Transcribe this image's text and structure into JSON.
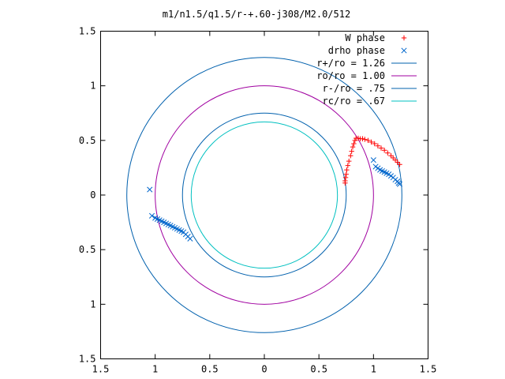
{
  "chart_data": {
    "type": "scatter",
    "title": "m1/n1.5/q1.5/r-+.60-j308/M2.0/512",
    "xlim": [
      -1.5,
      1.5
    ],
    "ylim": [
      -1.5,
      1.5
    ],
    "x_ticks": [
      -1.5,
      -1,
      -0.5,
      0,
      0.5,
      1,
      1.5
    ],
    "y_ticks": [
      -1.5,
      -1,
      -0.5,
      0,
      0.5,
      1,
      1.5
    ],
    "x_tick_labels": [
      "1.5",
      "1",
      "0.5",
      "0",
      "0.5",
      "1",
      "1.5"
    ],
    "y_tick_labels": [
      "1.5",
      "1",
      "0.5",
      "0",
      "0.5",
      "1",
      "1.5"
    ],
    "grid": false,
    "legend_position": "top-right",
    "series": [
      {
        "name": "W phase",
        "kind": "points",
        "marker": "+",
        "color": "#ff0000",
        "points": [
          [
            0.74,
            0.11
          ],
          [
            0.74,
            0.13
          ],
          [
            0.745,
            0.16
          ],
          [
            0.75,
            0.19
          ],
          [
            0.755,
            0.23
          ],
          [
            0.765,
            0.27
          ],
          [
            0.775,
            0.31
          ],
          [
            0.79,
            0.36
          ],
          [
            0.8,
            0.4
          ],
          [
            0.81,
            0.44
          ],
          [
            0.82,
            0.47
          ],
          [
            0.83,
            0.5
          ],
          [
            0.84,
            0.52
          ],
          [
            0.86,
            0.52
          ],
          [
            0.88,
            0.515
          ],
          [
            0.9,
            0.515
          ],
          [
            0.92,
            0.51
          ],
          [
            0.95,
            0.5
          ],
          [
            0.98,
            0.485
          ],
          [
            1.01,
            0.47
          ],
          [
            1.04,
            0.45
          ],
          [
            1.07,
            0.43
          ],
          [
            1.1,
            0.41
          ],
          [
            1.13,
            0.385
          ],
          [
            1.16,
            0.36
          ],
          [
            1.18,
            0.34
          ],
          [
            1.2,
            0.32
          ],
          [
            1.22,
            0.3
          ],
          [
            1.24,
            0.28
          ]
        ]
      },
      {
        "name": "drho phase",
        "kind": "points",
        "marker": "x",
        "color": "#0066cc",
        "points": [
          [
            1.0,
            0.32
          ],
          [
            1.02,
            0.26
          ],
          [
            1.04,
            0.245
          ],
          [
            1.06,
            0.23
          ],
          [
            1.08,
            0.22
          ],
          [
            1.1,
            0.21
          ],
          [
            1.12,
            0.2
          ],
          [
            1.14,
            0.19
          ],
          [
            1.16,
            0.175
          ],
          [
            1.18,
            0.16
          ],
          [
            1.2,
            0.14
          ],
          [
            1.22,
            0.125
          ],
          [
            1.23,
            0.11
          ],
          [
            1.24,
            0.1
          ],
          [
            -1.05,
            0.05
          ],
          [
            -1.03,
            -0.19
          ],
          [
            -1.0,
            -0.21
          ],
          [
            -0.98,
            -0.22
          ],
          [
            -0.96,
            -0.23
          ],
          [
            -0.94,
            -0.24
          ],
          [
            -0.92,
            -0.25
          ],
          [
            -0.9,
            -0.26
          ],
          [
            -0.88,
            -0.27
          ],
          [
            -0.86,
            -0.28
          ],
          [
            -0.84,
            -0.29
          ],
          [
            -0.82,
            -0.3
          ],
          [
            -0.8,
            -0.31
          ],
          [
            -0.78,
            -0.32
          ],
          [
            -0.76,
            -0.33
          ],
          [
            -0.74,
            -0.34
          ],
          [
            -0.72,
            -0.36
          ],
          [
            -0.7,
            -0.38
          ],
          [
            -0.68,
            -0.4
          ]
        ]
      },
      {
        "name": "r+/ro = 1.26",
        "kind": "circle",
        "radius": 1.26,
        "color": "#0060ad"
      },
      {
        "name": "ro/ro = 1.00",
        "kind": "circle",
        "radius": 1.0,
        "color": "#a000a0"
      },
      {
        "name": "r-/ro = .75",
        "kind": "circle",
        "radius": 0.75,
        "color": "#0060ad"
      },
      {
        "name": "rc/ro = .67",
        "kind": "circle",
        "radius": 0.67,
        "color": "#00c0c0"
      }
    ]
  }
}
